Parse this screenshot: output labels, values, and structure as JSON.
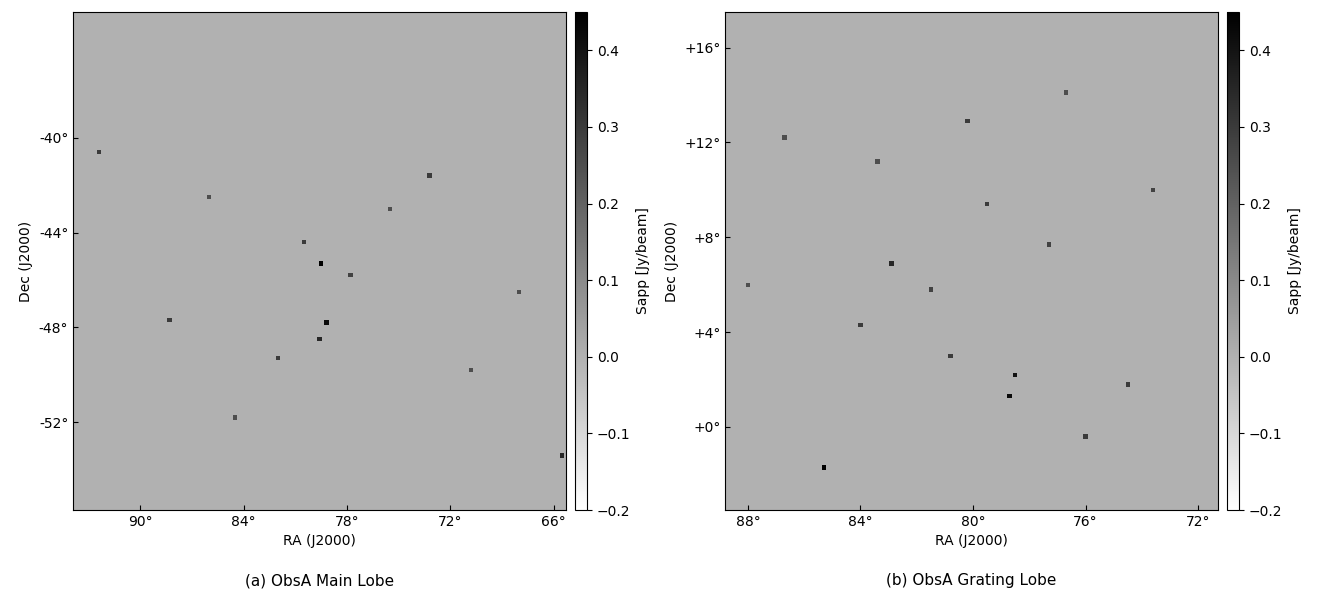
{
  "chart_data": [
    {
      "type": "image",
      "title": "(a) ObsA Main Lobe",
      "x_label": "RA (J2000)",
      "y_label": "Dec (J2000)",
      "xlim": [
        93.9,
        65.3
      ],
      "ylim": [
        -55.7,
        -34.7
      ],
      "xticks": [
        {
          "value": 90,
          "label": "90°"
        },
        {
          "value": 84,
          "label": "84°"
        },
        {
          "value": 78,
          "label": "78°"
        },
        {
          "value": 72,
          "label": "72°"
        },
        {
          "value": 66,
          "label": "66°"
        }
      ],
      "yticks": [
        {
          "value": -40,
          "label": "-40°"
        },
        {
          "value": -44,
          "label": "-44°"
        },
        {
          "value": -48,
          "label": "-48°"
        },
        {
          "value": -52,
          "label": "-52°"
        }
      ],
      "background": 0.0,
      "sources": {
        "ra": [
          79.5,
          79.2,
          79.6,
          92.4,
          65.5,
          73.2,
          88.3,
          70.8,
          80.5,
          77.8,
          84.5,
          75.5,
          68.0,
          86.0,
          82.0
        ],
        "dec": [
          -45.3,
          -47.8,
          -48.5,
          -40.6,
          -53.4,
          -41.6,
          -47.7,
          -49.8,
          -44.4,
          -45.8,
          -51.8,
          -43.0,
          -46.5,
          -42.5,
          -49.3
        ],
        "flux": [
          0.45,
          0.42,
          0.35,
          0.3,
          0.35,
          0.3,
          0.3,
          0.25,
          0.3,
          0.28,
          0.25,
          0.25,
          0.25,
          0.25,
          0.3
        ]
      },
      "colorbar_label": "Sapp [Jy/beam]",
      "clim": [
        -0.2,
        0.45
      ],
      "colorbar_ticks": [
        {
          "value": -0.2,
          "label": "−0.2"
        },
        {
          "value": -0.1,
          "label": "−0.1"
        },
        0.0,
        0.1,
        0.2,
        0.3,
        0.4
      ],
      "color": "gray_r"
    },
    {
      "type": "image",
      "title": "(b) ObsA Grating Lobe",
      "x_label": "RA (J2000)",
      "y_label": "Dec (J2000)",
      "xlim": [
        88.8,
        71.3
      ],
      "ylim": [
        -3.5,
        17.5
      ],
      "xticks": [
        {
          "value": 88,
          "label": "88°"
        },
        {
          "value": 84,
          "label": "84°"
        },
        {
          "value": 80,
          "label": "80°"
        },
        {
          "value": 76,
          "label": "76°"
        },
        {
          "value": 72,
          "label": "72°"
        }
      ],
      "yticks": [
        {
          "value": 0,
          "label": "+0°"
        },
        {
          "value": 4,
          "label": "+4°"
        },
        {
          "value": 8,
          "label": "+8°"
        },
        {
          "value": 12,
          "label": "+12°"
        },
        {
          "value": 16,
          "label": "+16°"
        }
      ],
      "background": 0.0,
      "sources": {
        "ra": [
          85.3,
          78.7,
          78.5,
          82.9,
          84.0,
          80.2,
          76.0,
          79.5,
          81.5,
          73.6,
          86.7,
          74.5,
          77.3,
          83.4,
          80.8,
          76.7,
          88.0
        ],
        "dec": [
          -1.7,
          1.3,
          2.2,
          6.9,
          4.3,
          12.9,
          -0.4,
          9.4,
          5.8,
          10.0,
          12.2,
          1.8,
          7.7,
          11.2,
          3.0,
          14.1,
          6.0
        ],
        "flux": [
          0.45,
          0.42,
          0.4,
          0.35,
          0.3,
          0.3,
          0.3,
          0.3,
          0.28,
          0.28,
          0.25,
          0.3,
          0.28,
          0.25,
          0.3,
          0.25,
          0.25
        ]
      },
      "colorbar_label": "Sapp [Jy/beam]",
      "clim": [
        -0.2,
        0.45
      ],
      "colorbar_ticks": [
        {
          "value": -0.2,
          "label": "−0.2"
        },
        {
          "value": -0.1,
          "label": "−0.1"
        },
        0.0,
        0.1,
        0.2,
        0.3,
        0.4
      ],
      "color": "gray_r"
    }
  ]
}
